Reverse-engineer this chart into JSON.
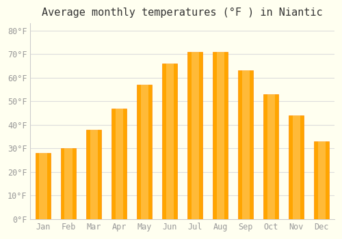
{
  "title": "Average monthly temperatures (°F ) in Niantic",
  "months": [
    "Jan",
    "Feb",
    "Mar",
    "Apr",
    "May",
    "Jun",
    "Jul",
    "Aug",
    "Sep",
    "Oct",
    "Nov",
    "Dec"
  ],
  "values": [
    28,
    30,
    38,
    47,
    57,
    66,
    71,
    71,
    63,
    53,
    44,
    33
  ],
  "bar_color": "#FFA500",
  "bar_edge_color": "#FF8C00",
  "background_color": "#FFFFF0",
  "grid_color": "#DDDDDD",
  "ylim": [
    0,
    83
  ],
  "yticks": [
    0,
    10,
    20,
    30,
    40,
    50,
    60,
    70,
    80
  ],
  "ytick_labels": [
    "0°F",
    "10°F",
    "20°F",
    "30°F",
    "40°F",
    "50°F",
    "60°F",
    "70°F",
    "80°F"
  ],
  "title_fontsize": 11,
  "tick_fontsize": 8.5,
  "tick_color": "#999999",
  "spine_color": "#CCCCCC"
}
